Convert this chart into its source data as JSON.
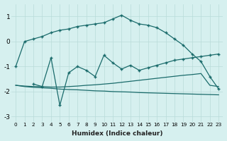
{
  "xlabel": "Humidex (Indice chaleur)",
  "bg_color": "#d6f0ef",
  "grid_color": "#b8dbd9",
  "line_color": "#1a6b6b",
  "xlim": [
    -0.5,
    23.5
  ],
  "ylim": [
    -3.2,
    1.5
  ],
  "yticks": [
    -3,
    -2,
    -1,
    0,
    1
  ],
  "xticks": [
    0,
    1,
    2,
    3,
    4,
    5,
    6,
    7,
    8,
    9,
    10,
    11,
    12,
    13,
    14,
    15,
    16,
    17,
    18,
    19,
    20,
    21,
    22,
    23
  ],
  "line1_x": [
    0,
    1,
    2,
    3,
    4,
    5,
    6,
    7,
    8,
    9,
    10,
    11,
    12,
    13,
    14,
    15,
    16,
    17,
    18,
    19,
    20,
    21,
    22,
    23
  ],
  "line1_y": [
    -1.0,
    0.0,
    0.1,
    0.2,
    0.35,
    0.45,
    0.5,
    0.6,
    0.65,
    0.7,
    0.75,
    0.9,
    1.05,
    0.85,
    0.7,
    0.65,
    0.55,
    0.35,
    0.1,
    -0.15,
    -0.5,
    -0.8,
    -1.4,
    -1.9
  ],
  "line2_x": [
    2,
    3,
    4,
    5,
    6,
    7,
    8,
    9,
    10,
    11,
    12,
    13,
    14,
    15,
    16,
    17,
    18,
    19,
    20,
    21,
    22,
    23
  ],
  "line2_y": [
    -1.7,
    -1.8,
    -0.65,
    -2.55,
    -1.25,
    -1.0,
    -1.15,
    -1.4,
    -0.55,
    -0.85,
    -1.1,
    -0.95,
    -1.15,
    -1.05,
    -0.95,
    -0.85,
    -0.75,
    -0.7,
    -0.65,
    -0.6,
    -0.55,
    -0.5
  ],
  "line3_x": [
    0,
    1,
    2,
    3,
    4,
    5,
    6,
    7,
    8,
    9,
    10,
    11,
    12,
    13,
    14,
    15,
    16,
    17,
    18,
    19,
    20,
    21,
    22,
    23
  ],
  "line3_y": [
    -1.75,
    -1.78,
    -1.8,
    -1.8,
    -1.82,
    -1.82,
    -1.8,
    -1.78,
    -1.75,
    -1.73,
    -1.7,
    -1.67,
    -1.63,
    -1.59,
    -1.55,
    -1.51,
    -1.47,
    -1.43,
    -1.39,
    -1.35,
    -1.32,
    -1.28,
    -1.75,
    -1.8
  ],
  "line4_x": [
    0,
    1,
    2,
    3,
    4,
    5,
    6,
    7,
    8,
    9,
    10,
    11,
    12,
    13,
    14,
    15,
    16,
    17,
    18,
    19,
    20,
    21,
    22,
    23
  ],
  "line4_y": [
    -1.75,
    -1.8,
    -1.83,
    -1.85,
    -1.87,
    -1.9,
    -1.92,
    -1.93,
    -1.95,
    -1.97,
    -1.98,
    -2.0,
    -2.01,
    -2.02,
    -2.04,
    -2.05,
    -2.06,
    -2.07,
    -2.08,
    -2.09,
    -2.1,
    -2.11,
    -2.12,
    -2.13
  ],
  "line1_marker_x": [
    0,
    1,
    2,
    3,
    5,
    7,
    10,
    11,
    12,
    13,
    14,
    15,
    16,
    17,
    19,
    20,
    21,
    22,
    23
  ],
  "line2_marker_x": [
    3,
    4,
    5,
    6,
    7,
    8,
    10,
    11,
    12,
    13,
    14,
    15,
    17,
    20,
    21,
    22,
    23
  ]
}
